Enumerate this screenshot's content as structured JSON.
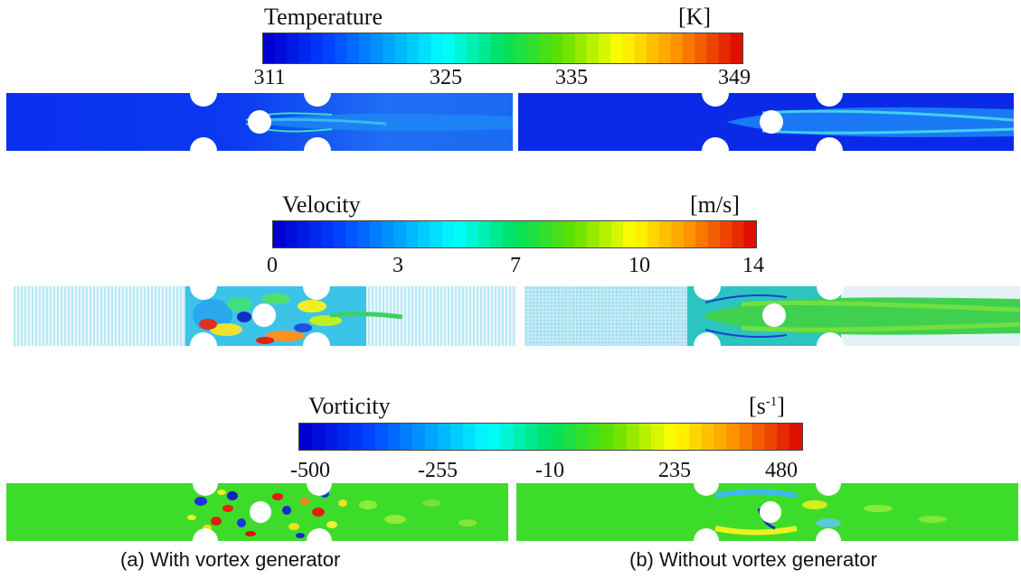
{
  "colorbars": [
    {
      "title": "Temperature",
      "unit": "[K]",
      "ticks": [
        "311",
        "325",
        "335",
        "349"
      ],
      "tick_values": [
        311,
        325,
        335,
        349
      ],
      "range": [
        311,
        349
      ]
    },
    {
      "title": "Velocity",
      "unit": "[m/s]",
      "ticks": [
        "0",
        "3",
        "7",
        "10",
        "14"
      ],
      "tick_values": [
        0,
        3,
        7,
        10,
        14
      ],
      "range": [
        0,
        14
      ]
    },
    {
      "title": "Vorticity",
      "unit_base": "[s",
      "unit_sup": "-1",
      "unit_end": "]",
      "ticks": [
        "-500",
        "-255",
        "-10",
        "235",
        "480"
      ],
      "tick_values": [
        -500,
        -255,
        -10,
        235,
        480
      ],
      "range": [
        -500,
        480
      ]
    }
  ],
  "captions": {
    "left": "(a) With vortex generator",
    "right": "(b) Without vortex generator"
  },
  "colors": {
    "colormap": [
      "#0000d0",
      "#0040ff",
      "#00a0ff",
      "#00ffff",
      "#00e060",
      "#60e000",
      "#ffff00",
      "#ff9000",
      "#e01000"
    ],
    "temp_background": "#0a32ee",
    "vel_background": "#cfeff7",
    "vort_background": "#3dde2a"
  }
}
